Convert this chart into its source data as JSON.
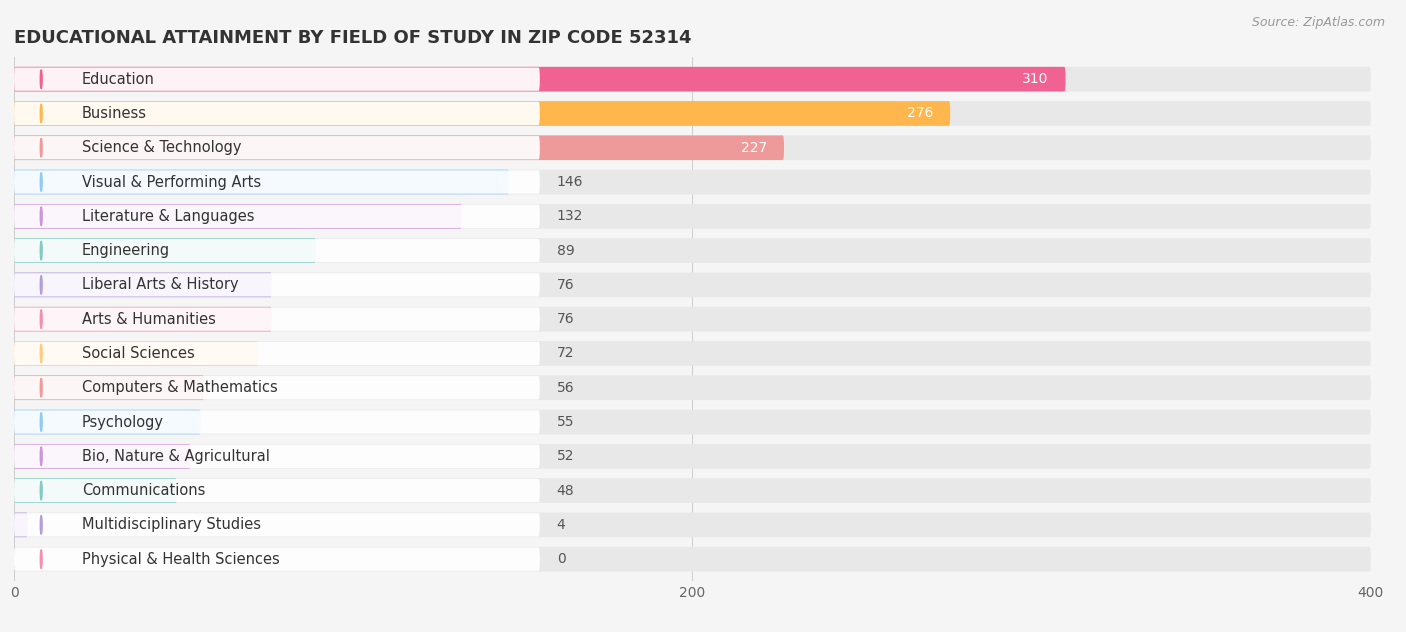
{
  "title": "EDUCATIONAL ATTAINMENT BY FIELD OF STUDY IN ZIP CODE 52314",
  "source": "Source: ZipAtlas.com",
  "categories": [
    "Education",
    "Business",
    "Science & Technology",
    "Visual & Performing Arts",
    "Literature & Languages",
    "Engineering",
    "Liberal Arts & History",
    "Arts & Humanities",
    "Social Sciences",
    "Computers & Mathematics",
    "Psychology",
    "Bio, Nature & Agricultural",
    "Communications",
    "Multidisciplinary Studies",
    "Physical & Health Sciences"
  ],
  "values": [
    310,
    276,
    227,
    146,
    132,
    89,
    76,
    76,
    72,
    56,
    55,
    52,
    48,
    4,
    0
  ],
  "bar_colors": [
    "#F06292",
    "#FFB74D",
    "#EF9A9A",
    "#90CAF9",
    "#CE93D8",
    "#80CBC4",
    "#B39DDB",
    "#F48FB1",
    "#FFCC80",
    "#EF9A9A",
    "#90CAF9",
    "#CE93D8",
    "#80CBC4",
    "#B39DDB",
    "#F48FB1"
  ],
  "label_colors": {
    "inside": "#ffffff",
    "outside": "#555555"
  },
  "xlim": [
    0,
    400
  ],
  "xticks": [
    0,
    200,
    400
  ],
  "background_color": "#f5f5f5",
  "bar_background_color": "#e8e8e8",
  "title_fontsize": 13,
  "label_fontsize": 10.5,
  "value_fontsize": 10,
  "source_fontsize": 9
}
